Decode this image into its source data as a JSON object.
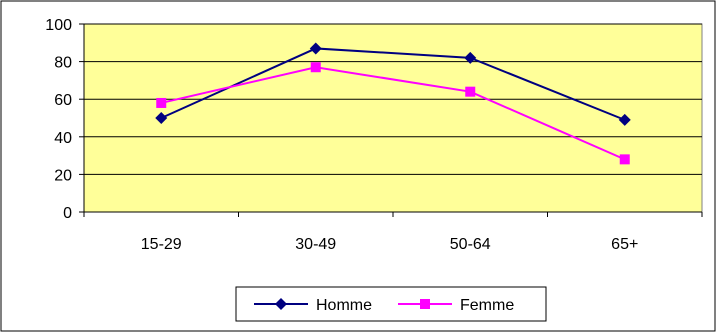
{
  "chart_data": {
    "type": "line",
    "categories": [
      "15-29",
      "30-49",
      "50-64",
      "65+"
    ],
    "series": [
      {
        "name": "Homme",
        "values": [
          50,
          87,
          82,
          49
        ],
        "color": "#000080",
        "marker": "diamond"
      },
      {
        "name": "Femme",
        "values": [
          58,
          77,
          64,
          28
        ],
        "color": "#ff00ff",
        "marker": "square"
      }
    ],
    "ylim": [
      0,
      100
    ],
    "yticks": [
      "0",
      "20",
      "40",
      "60",
      "80",
      "100"
    ],
    "grid": true,
    "plot_background": "#ffff99",
    "legend_position": "bottom"
  }
}
